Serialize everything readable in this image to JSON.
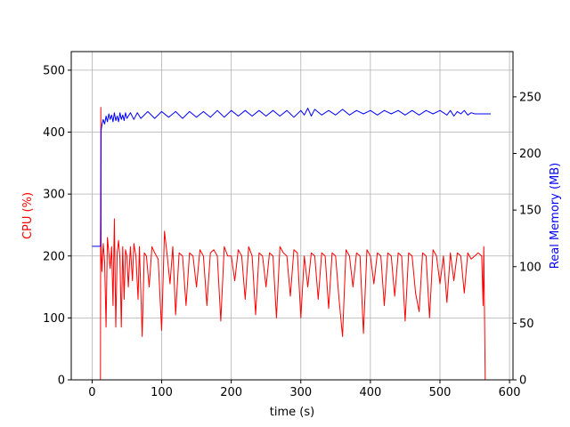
{
  "chart_data": {
    "type": "line",
    "title": "",
    "xlabel": "time (s)",
    "ylabel_left": "CPU (%)",
    "ylabel_right": "Real Memory (MB)",
    "xlim": [
      -30,
      605
    ],
    "ylim_left": [
      0,
      530
    ],
    "ylim_right": [
      0,
      290
    ],
    "x_ticks": [
      0,
      100,
      200,
      300,
      400,
      500,
      600
    ],
    "y_ticks_left": [
      0,
      100,
      200,
      300,
      400,
      500
    ],
    "y_ticks_right": [
      0,
      50,
      100,
      150,
      200,
      250
    ],
    "grid": true,
    "colors": {
      "cpu": "#ff0000",
      "memory": "#0000ff",
      "grid": "#b0b0b0"
    },
    "series": [
      {
        "axis": "left",
        "color": "#ff0000",
        "x": [
          0,
          12,
          12.5,
          13,
          14,
          16,
          18,
          20,
          22,
          24,
          26,
          28,
          30,
          32,
          34,
          36,
          38,
          40,
          42,
          44,
          46,
          48,
          50,
          52,
          55,
          58,
          60,
          63,
          66,
          68,
          72,
          75,
          78,
          82,
          86,
          90,
          95,
          100,
          104,
          108,
          112,
          116,
          120,
          125,
          130,
          135,
          140,
          145,
          150,
          155,
          160,
          165,
          170,
          175,
          180,
          185,
          190,
          195,
          200,
          205,
          210,
          215,
          220,
          225,
          230,
          235,
          240,
          245,
          250,
          255,
          260,
          265,
          270,
          275,
          280,
          285,
          290,
          295,
          300,
          305,
          310,
          315,
          320,
          325,
          330,
          335,
          340,
          345,
          350,
          355,
          360,
          365,
          370,
          375,
          380,
          385,
          390,
          395,
          400,
          405,
          410,
          415,
          420,
          425,
          430,
          435,
          440,
          445,
          450,
          455,
          460,
          465,
          470,
          475,
          480,
          485,
          490,
          495,
          500,
          505,
          510,
          515,
          520,
          525,
          530,
          535,
          540,
          545,
          550,
          555,
          560,
          562,
          563,
          565
        ],
        "values": [
          0,
          0,
          440,
          210,
          175,
          220,
          190,
          85,
          230,
          205,
          180,
          215,
          120,
          260,
          85,
          205,
          225,
          195,
          85,
          215,
          130,
          210,
          200,
          150,
          215,
          160,
          220,
          200,
          130,
          215,
          70,
          205,
          200,
          150,
          215,
          205,
          195,
          80,
          240,
          200,
          155,
          215,
          105,
          205,
          200,
          120,
          205,
          200,
          150,
          210,
          200,
          120,
          205,
          210,
          200,
          95,
          215,
          200,
          200,
          160,
          210,
          200,
          130,
          215,
          200,
          105,
          205,
          200,
          150,
          205,
          200,
          100,
          215,
          205,
          200,
          135,
          210,
          205,
          100,
          200,
          150,
          205,
          200,
          130,
          205,
          200,
          115,
          205,
          200,
          130,
          70,
          210,
          200,
          150,
          205,
          200,
          75,
          210,
          200,
          155,
          205,
          200,
          120,
          205,
          200,
          135,
          205,
          200,
          95,
          205,
          200,
          140,
          110,
          205,
          200,
          100,
          210,
          200,
          155,
          200,
          125,
          205,
          160,
          205,
          200,
          140,
          205,
          195,
          200,
          205,
          200,
          120,
          215,
          0
        ]
      },
      {
        "axis": "right",
        "color": "#0000ff",
        "x": [
          0,
          12,
          13,
          14,
          16,
          18,
          20,
          22,
          24,
          26,
          28,
          30,
          32,
          34,
          36,
          38,
          40,
          42,
          44,
          46,
          48,
          50,
          55,
          60,
          65,
          70,
          80,
          90,
          100,
          110,
          120,
          130,
          140,
          150,
          160,
          170,
          180,
          190,
          200,
          210,
          220,
          230,
          240,
          250,
          260,
          270,
          280,
          290,
          300,
          305,
          310,
          315,
          320,
          330,
          340,
          350,
          360,
          370,
          380,
          390,
          400,
          410,
          420,
          430,
          440,
          450,
          460,
          470,
          480,
          490,
          500,
          510,
          515,
          520,
          525,
          530,
          535,
          540,
          545,
          550,
          560,
          573
        ],
        "values": [
          118,
          118,
          221,
          225,
          230,
          226,
          233,
          228,
          235,
          230,
          234,
          228,
          236,
          229,
          233,
          228,
          236,
          230,
          234,
          229,
          236,
          231,
          236,
          230,
          236,
          231,
          237,
          231,
          237,
          232,
          237,
          231,
          237,
          232,
          237,
          232,
          238,
          232,
          238,
          233,
          238,
          233,
          238,
          233,
          238,
          233,
          238,
          232,
          238,
          234,
          240,
          233,
          239,
          234,
          238,
          234,
          239,
          234,
          238,
          235,
          238,
          234,
          238,
          235,
          238,
          234,
          238,
          234,
          238,
          235,
          238,
          234,
          238,
          233,
          237,
          235,
          238,
          234,
          236,
          235,
          235,
          235
        ]
      }
    ]
  }
}
